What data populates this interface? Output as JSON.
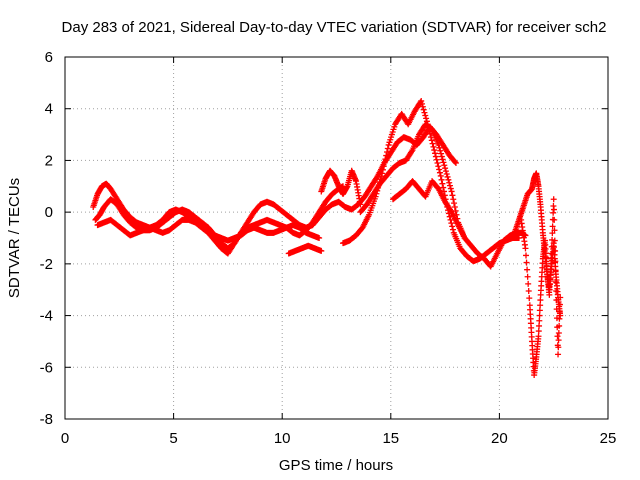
{
  "chart_data": {
    "type": "scatter",
    "title": "Day 283 of 2021, Sidereal Day-to-day VTEC variation (SDTVAR) for receiver sch2",
    "xlabel": "GPS time / hours",
    "ylabel": "SDTVAR / TECUs",
    "xlim": [
      0,
      25
    ],
    "ylim": [
      -8,
      6
    ],
    "xticks": [
      0,
      5,
      10,
      15,
      20,
      25
    ],
    "yticks": [
      -8,
      -6,
      -4,
      -2,
      0,
      2,
      4,
      6
    ],
    "xtick_labels": [
      "0",
      "5",
      "10",
      "15",
      "20",
      "25"
    ],
    "ytick_labels": [
      "-8",
      "-6",
      "-4",
      "-2",
      "0",
      "2",
      "4",
      "6"
    ],
    "grid": true,
    "legend": "none",
    "marker": "plus",
    "color": "#ff0000",
    "series": [
      {
        "x": [
          1.3,
          1.5,
          1.7,
          1.9,
          2.1,
          2.4,
          2.7,
          3.0,
          3.3,
          3.6,
          3.9,
          4.2,
          4.5,
          4.8,
          5.1,
          5.4,
          5.7,
          6.0,
          6.3,
          6.6,
          6.9,
          7.2,
          7.5,
          7.8,
          8.1,
          8.4,
          8.7,
          9.0,
          9.3,
          9.6,
          9.9,
          10.2,
          10.5,
          10.8,
          11.1,
          11.4,
          11.7,
          12.0,
          12.3,
          12.6,
          12.8
        ],
        "y": [
          0.2,
          0.7,
          1.0,
          1.1,
          0.9,
          0.5,
          0.1,
          -0.2,
          -0.4,
          -0.5,
          -0.6,
          -0.5,
          -0.3,
          0.0,
          0.1,
          0.0,
          -0.2,
          -0.3,
          -0.5,
          -0.8,
          -1.1,
          -1.4,
          -1.6,
          -1.2,
          -0.8,
          -0.6,
          -0.5,
          -0.4,
          -0.3,
          -0.4,
          -0.5,
          -0.6,
          -0.8,
          -0.9,
          -0.7,
          -0.4,
          0.0,
          0.4,
          0.7,
          0.9,
          1.0
        ]
      },
      {
        "x": [
          1.4,
          1.6,
          1.8,
          2.1,
          2.4,
          2.7,
          3.0,
          3.3,
          3.6,
          3.9,
          4.2,
          4.5,
          4.8,
          5.1,
          5.4,
          5.7,
          6.0,
          6.3,
          6.6,
          6.9,
          7.2,
          7.5,
          7.8,
          8.1,
          8.4,
          8.7,
          9.0,
          9.3,
          9.6,
          9.9,
          10.2,
          10.5,
          10.8,
          11.1,
          11.4,
          11.7,
          12.0,
          12.3,
          12.6,
          12.9,
          13.2,
          13.5,
          13.8,
          14.1,
          14.4,
          14.7,
          15.0,
          15.3,
          15.6,
          15.9,
          16.2,
          16.5,
          16.8,
          17.1,
          17.4,
          17.7,
          18.0
        ],
        "y": [
          -0.3,
          -0.1,
          0.2,
          0.5,
          0.3,
          -0.1,
          -0.4,
          -0.6,
          -0.7,
          -0.7,
          -0.6,
          -0.4,
          -0.2,
          0.0,
          0.1,
          0.0,
          -0.2,
          -0.4,
          -0.6,
          -0.9,
          -1.2,
          -1.4,
          -1.2,
          -0.8,
          -0.4,
          0.0,
          0.3,
          0.4,
          0.3,
          0.1,
          -0.1,
          -0.3,
          -0.5,
          -0.6,
          -0.5,
          -0.2,
          0.1,
          0.3,
          0.4,
          0.2,
          0.1,
          0.3,
          0.6,
          1.0,
          1.4,
          1.9,
          2.3,
          2.7,
          2.9,
          2.8,
          2.6,
          2.9,
          3.3,
          3.0,
          2.6,
          2.2,
          1.9
        ]
      },
      {
        "x": [
          1.5,
          1.8,
          2.1,
          2.4,
          2.7,
          3.0,
          3.3,
          3.6,
          3.9,
          4.2,
          4.5,
          4.8,
          5.1,
          5.4,
          5.7,
          6.0,
          6.3,
          6.6,
          6.9,
          7.2,
          7.5,
          7.8,
          8.1,
          8.4,
          8.7,
          9.0,
          9.3,
          9.6,
          9.9,
          10.2,
          10.5,
          10.8,
          11.1,
          11.4,
          11.7
        ],
        "y": [
          -0.5,
          -0.4,
          -0.3,
          -0.5,
          -0.7,
          -0.9,
          -0.8,
          -0.7,
          -0.6,
          -0.7,
          -0.8,
          -0.7,
          -0.5,
          -0.3,
          -0.3,
          -0.4,
          -0.6,
          -0.8,
          -0.9,
          -1.0,
          -1.1,
          -1.0,
          -0.9,
          -0.7,
          -0.6,
          -0.7,
          -0.8,
          -0.8,
          -0.7,
          -0.6,
          -0.5,
          -0.6,
          -0.8,
          -0.9,
          -1.0
        ]
      },
      {
        "x": [
          10.3,
          10.6,
          10.9,
          11.2,
          11.5,
          11.8
        ],
        "y": [
          -1.6,
          -1.5,
          -1.4,
          -1.3,
          -1.4,
          -1.5
        ]
      },
      {
        "x": [
          11.8,
          12.0,
          12.2,
          12.4,
          12.6,
          12.8,
          13.0,
          13.2,
          13.4,
          13.6
        ],
        "y": [
          0.8,
          1.3,
          1.6,
          1.4,
          1.0,
          0.7,
          1.0,
          1.6,
          1.2,
          0.3
        ]
      },
      {
        "x": [
          12.8,
          13.1,
          13.4,
          13.7,
          14.0,
          14.3,
          14.6,
          14.9,
          15.2,
          15.5,
          15.8,
          16.1,
          16.4,
          16.7,
          17.0,
          17.3,
          17.6,
          17.9,
          18.2,
          18.5,
          18.8,
          19.1,
          19.4,
          19.7,
          20.0,
          20.3,
          20.6,
          20.9
        ],
        "y": [
          -1.2,
          -1.1,
          -0.9,
          -0.6,
          -0.1,
          0.6,
          1.5,
          2.6,
          3.4,
          3.8,
          3.4,
          3.9,
          4.3,
          3.4,
          2.4,
          1.4,
          0.2,
          -0.8,
          -1.4,
          -1.7,
          -1.9,
          -1.8,
          -1.6,
          -1.4,
          -1.2,
          -1.1,
          -1.0,
          -1.0
        ]
      },
      {
        "x": [
          13.6,
          13.9,
          14.2,
          14.5,
          14.8,
          15.1,
          15.4,
          15.7,
          16.0,
          16.3,
          16.6,
          16.9,
          17.2,
          17.5,
          17.8,
          18.1,
          18.4,
          18.7,
          19.0,
          19.3,
          19.6,
          19.9,
          20.2,
          20.5,
          20.8,
          21.0,
          21.2
        ],
        "y": [
          0.0,
          0.3,
          0.7,
          1.1,
          1.4,
          1.7,
          1.9,
          2.0,
          2.4,
          3.0,
          3.4,
          3.2,
          2.6,
          1.7,
          0.8,
          -0.4,
          -1.0,
          -1.3,
          -1.6,
          -1.8,
          -2.1,
          -1.6,
          -1.1,
          -0.9,
          -0.8,
          -0.8,
          -0.9
        ]
      },
      {
        "x": [
          15.1,
          15.4,
          15.7,
          16.0,
          16.3,
          16.6,
          16.9,
          17.2,
          17.5,
          17.8,
          18.1,
          18.4
        ],
        "y": [
          0.5,
          0.7,
          0.9,
          1.2,
          0.9,
          0.6,
          1.2,
          0.9,
          0.4,
          0.0,
          -0.5,
          -1.0
        ]
      },
      {
        "x": [
          20.7,
          20.9,
          21.1,
          21.3,
          21.5,
          21.6,
          21.7,
          21.8,
          21.9,
          22.0,
          22.1,
          22.2,
          22.3,
          22.4,
          22.5,
          22.6,
          22.7,
          22.8
        ],
        "y": [
          -0.8,
          -0.3,
          0.2,
          0.7,
          0.9,
          1.3,
          1.5,
          1.0,
          0.2,
          -0.8,
          -1.6,
          -2.4,
          -3.0,
          -2.1,
          -1.2,
          -2.4,
          -3.3,
          -4.0
        ]
      },
      {
        "x": [
          21.0,
          21.2,
          21.4,
          21.5,
          21.6,
          21.7,
          21.8,
          21.9,
          22.0,
          22.1,
          22.2,
          22.3,
          22.4,
          22.5,
          22.6,
          22.7,
          22.8
        ],
        "y": [
          -0.3,
          -1.4,
          -3.6,
          -5.0,
          -6.3,
          -5.6,
          -4.8,
          -3.2,
          -1.8,
          -1.1,
          -2.4,
          -3.2,
          -1.6,
          0.5,
          -2.7,
          -5.5,
          -3.3
        ]
      }
    ]
  }
}
